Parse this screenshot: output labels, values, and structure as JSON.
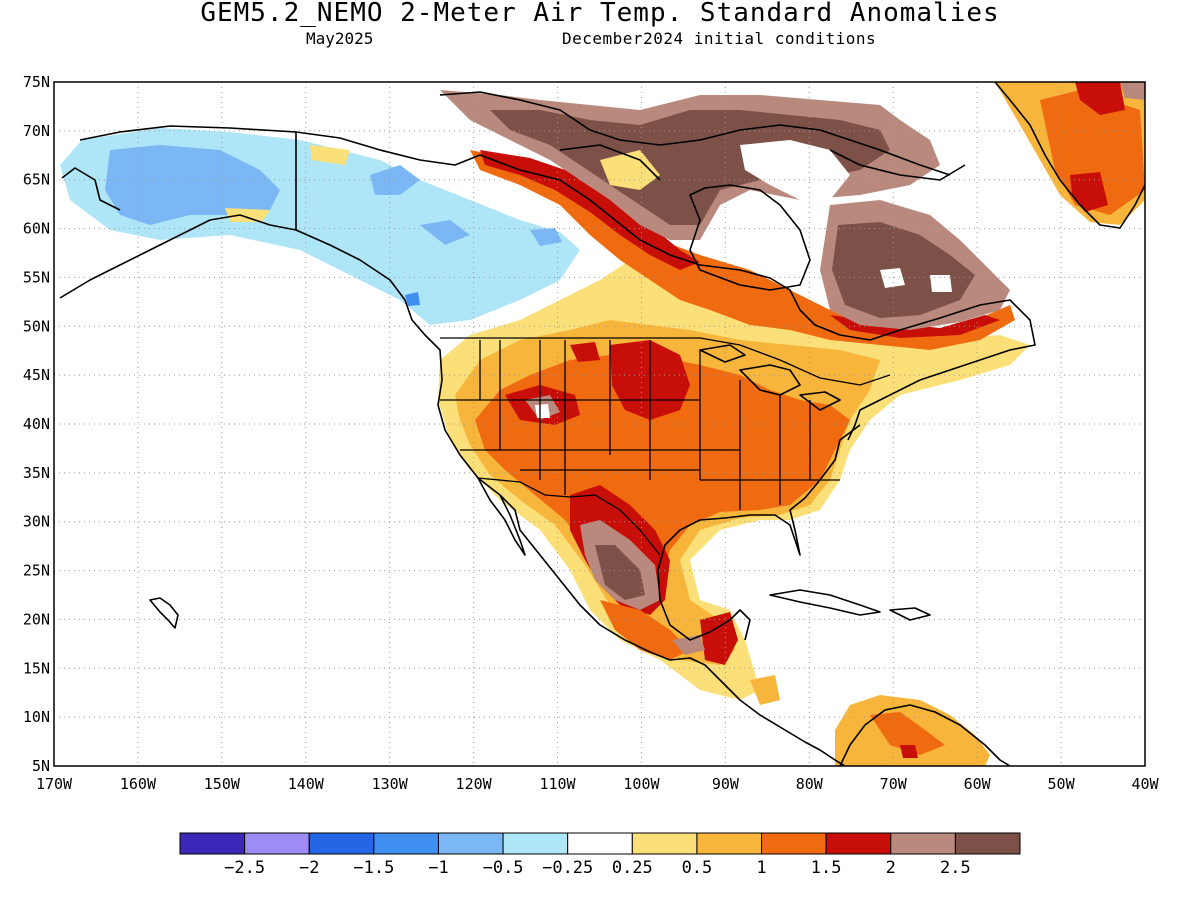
{
  "header": {
    "title": "GEM5.2_NEMO 2-Meter Air Temp. Standard Anomalies",
    "valid_month": "May2025",
    "init_conditions": "December2024 initial conditions"
  },
  "axes": {
    "lat_labels": [
      "75N",
      "70N",
      "65N",
      "60N",
      "55N",
      "50N",
      "45N",
      "40N",
      "35N",
      "30N",
      "25N",
      "20N",
      "15N",
      "10N",
      "5N"
    ],
    "lon_labels": [
      "170W",
      "160W",
      "150W",
      "140W",
      "130W",
      "120W",
      "110W",
      "100W",
      "90W",
      "80W",
      "70W",
      "60W",
      "50W",
      "40W"
    ],
    "lat_range": [
      5,
      75
    ],
    "lon_range": [
      -170,
      -40
    ],
    "grid": "dotted every 10 degrees longitude and 5 degrees latitude"
  },
  "colorbar": {
    "colors": [
      "#3b28b8",
      "#9f8bf5",
      "#2466e6",
      "#3f8ff0",
      "#7cb7f5",
      "#aee6f7",
      "#ffffff",
      "#fbe07a",
      "#f8b53c",
      "#f06a10",
      "#c80e08",
      "#b9897e",
      "#7d5147"
    ],
    "labels": [
      "−2.5",
      "−2",
      "−1.5",
      "−1",
      "−0.5",
      "−0.25",
      "0.25",
      "0.5",
      "1",
      "1.5",
      "2",
      "2.5"
    ]
  },
  "map": {
    "regions": [
      {
        "name": "alaska-below-normal",
        "level": -1
      },
      {
        "name": "yukon-slightly-below",
        "level": -0.5
      },
      {
        "name": "western-canada-slightly-below",
        "level": -0.5
      },
      {
        "name": "central-us-above",
        "level": 1.5
      },
      {
        "name": "northern-plains-much-above",
        "level": 2
      },
      {
        "name": "hudson-region-far-above",
        "level": 2.5
      },
      {
        "name": "labrador-far-above",
        "level": 2.5
      },
      {
        "name": "greenland-above",
        "level": 1.5
      },
      {
        "name": "mexico-much-above",
        "level": 2
      },
      {
        "name": "northern-south-america-above",
        "level": 1
      }
    ]
  }
}
